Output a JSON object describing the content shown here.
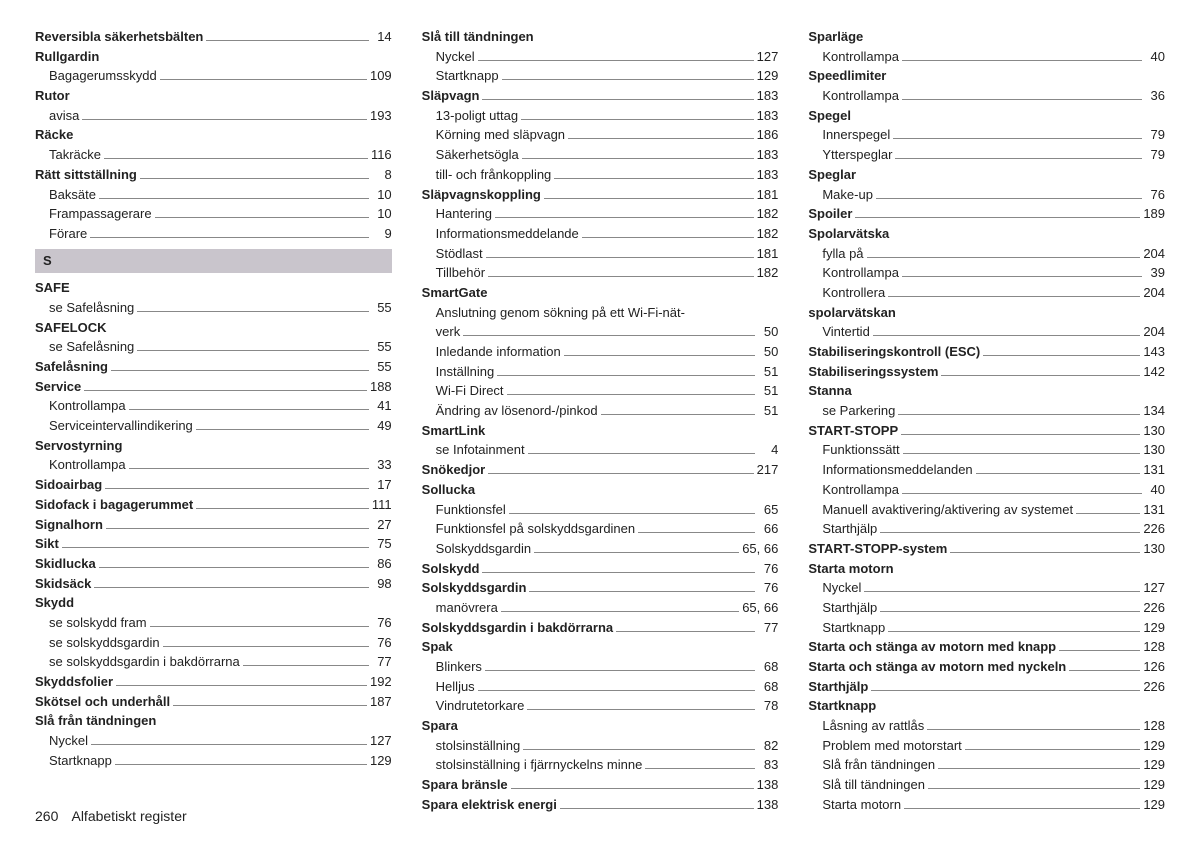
{
  "footer": {
    "page_number": "260",
    "title": "Alfabetiskt register"
  },
  "section_letter": "S",
  "columns": [
    [
      {
        "t": "entry",
        "bold": true,
        "label": "Reversibla säkerhetsbälten",
        "pg": "14"
      },
      {
        "t": "entry",
        "bold": true,
        "label": "Rullgardin",
        "nopage": true
      },
      {
        "t": "entry",
        "sub": true,
        "label": "Bagagerumsskydd",
        "pg": "109"
      },
      {
        "t": "entry",
        "bold": true,
        "label": "Rutor",
        "nopage": true
      },
      {
        "t": "entry",
        "sub": true,
        "label": "avisa",
        "pg": "193"
      },
      {
        "t": "entry",
        "bold": true,
        "label": "Räcke",
        "nopage": true
      },
      {
        "t": "entry",
        "sub": true,
        "label": "Takräcke",
        "pg": "116"
      },
      {
        "t": "entry",
        "bold": true,
        "label": "Rätt sittställning",
        "pg": "8"
      },
      {
        "t": "entry",
        "sub": true,
        "label": "Baksäte",
        "pg": "10"
      },
      {
        "t": "entry",
        "sub": true,
        "label": "Frampassagerare",
        "pg": "10"
      },
      {
        "t": "entry",
        "sub": true,
        "label": "Förare",
        "pg": "9"
      },
      {
        "t": "section",
        "label": "S"
      },
      {
        "t": "entry",
        "bold": true,
        "label": "SAFE",
        "nopage": true
      },
      {
        "t": "entry",
        "sub": true,
        "label": "se Safelåsning",
        "pg": "55"
      },
      {
        "t": "entry",
        "bold": true,
        "label": "SAFELOCK",
        "nopage": true
      },
      {
        "t": "entry",
        "sub": true,
        "label": "se Safelåsning",
        "pg": "55"
      },
      {
        "t": "entry",
        "bold": true,
        "label": "Safelåsning",
        "pg": "55"
      },
      {
        "t": "entry",
        "bold": true,
        "label": "Service",
        "pg": "188"
      },
      {
        "t": "entry",
        "sub": true,
        "label": "Kontrollampa",
        "pg": "41"
      },
      {
        "t": "entry",
        "sub": true,
        "label": "Serviceintervallindikering",
        "pg": "49"
      },
      {
        "t": "entry",
        "bold": true,
        "label": "Servostyrning",
        "nopage": true
      },
      {
        "t": "entry",
        "sub": true,
        "label": "Kontrollampa",
        "pg": "33"
      },
      {
        "t": "entry",
        "bold": true,
        "label": "Sidoairbag",
        "pg": "17"
      },
      {
        "t": "entry",
        "bold": true,
        "label": "Sidofack i bagagerummet",
        "pg": "111"
      },
      {
        "t": "entry",
        "bold": true,
        "label": "Signalhorn",
        "pg": "27"
      },
      {
        "t": "entry",
        "bold": true,
        "label": "Sikt",
        "pg": "75"
      },
      {
        "t": "entry",
        "bold": true,
        "label": "Skidlucka",
        "pg": "86"
      },
      {
        "t": "entry",
        "bold": true,
        "label": "Skidsäck",
        "pg": "98"
      },
      {
        "t": "entry",
        "bold": true,
        "label": "Skydd",
        "nopage": true
      },
      {
        "t": "entry",
        "sub": true,
        "label": "se solskydd fram",
        "pg": "76"
      },
      {
        "t": "entry",
        "sub": true,
        "label": "se solskyddsgardin",
        "pg": "76"
      },
      {
        "t": "entry",
        "sub": true,
        "label": "se solskyddsgardin i bakdörrarna",
        "pg": "77"
      },
      {
        "t": "entry",
        "bold": true,
        "label": "Skyddsfolier",
        "pg": "192"
      },
      {
        "t": "entry",
        "bold": true,
        "label": "Skötsel och underhåll",
        "pg": "187"
      },
      {
        "t": "entry",
        "bold": true,
        "label": "Slå från tändningen",
        "nopage": true
      },
      {
        "t": "entry",
        "sub": true,
        "label": "Nyckel",
        "pg": "127"
      },
      {
        "t": "entry",
        "sub": true,
        "label": "Startknapp",
        "pg": "129"
      }
    ],
    [
      {
        "t": "entry",
        "bold": true,
        "label": "Slå till tändningen",
        "nopage": true
      },
      {
        "t": "entry",
        "sub": true,
        "label": "Nyckel",
        "pg": "127"
      },
      {
        "t": "entry",
        "sub": true,
        "label": "Startknapp",
        "pg": "129"
      },
      {
        "t": "entry",
        "bold": true,
        "label": "Släpvagn",
        "pg": "183"
      },
      {
        "t": "entry",
        "sub": true,
        "label": "13-poligt uttag",
        "pg": "183"
      },
      {
        "t": "entry",
        "sub": true,
        "label": "Körning med släpvagn",
        "pg": "186"
      },
      {
        "t": "entry",
        "sub": true,
        "label": "Säkerhetsögla",
        "pg": "183"
      },
      {
        "t": "entry",
        "sub": true,
        "label": "till- och frånkoppling",
        "pg": "183"
      },
      {
        "t": "entry",
        "bold": true,
        "label": "Släpvagnskoppling",
        "pg": "181"
      },
      {
        "t": "entry",
        "sub": true,
        "label": "Hantering",
        "pg": "182"
      },
      {
        "t": "entry",
        "sub": true,
        "label": "Informationsmeddelande",
        "pg": "182"
      },
      {
        "t": "entry",
        "sub": true,
        "label": "Stödlast",
        "pg": "181"
      },
      {
        "t": "entry",
        "sub": true,
        "label": "Tillbehör",
        "pg": "182"
      },
      {
        "t": "entry",
        "bold": true,
        "label": "SmartGate",
        "nopage": true
      },
      {
        "t": "entry",
        "sub": true,
        "label": "Anslutning genom sökning på ett Wi-Fi-nät-",
        "nopage": true
      },
      {
        "t": "entry",
        "sub": true,
        "label": "verk",
        "pg": "50"
      },
      {
        "t": "entry",
        "sub": true,
        "label": "Inledande information",
        "pg": "50"
      },
      {
        "t": "entry",
        "sub": true,
        "label": "Inställning",
        "pg": "51"
      },
      {
        "t": "entry",
        "sub": true,
        "label": "Wi-Fi Direct",
        "pg": "51"
      },
      {
        "t": "entry",
        "sub": true,
        "label": "Ändring av lösenord-/pinkod",
        "pg": "51"
      },
      {
        "t": "entry",
        "bold": true,
        "label": "SmartLink",
        "nopage": true
      },
      {
        "t": "entry",
        "sub": true,
        "label": "se Infotainment",
        "pg": "4"
      },
      {
        "t": "entry",
        "bold": true,
        "label": "Snökedjor",
        "pg": "217"
      },
      {
        "t": "entry",
        "bold": true,
        "label": "Sollucka",
        "nopage": true
      },
      {
        "t": "entry",
        "sub": true,
        "label": "Funktionsfel",
        "pg": "65"
      },
      {
        "t": "entry",
        "sub": true,
        "label": "Funktionsfel på solskyddsgardinen",
        "pg": "66"
      },
      {
        "t": "entry",
        "sub": true,
        "label": "Solskyddsgardin",
        "pg": "65, 66"
      },
      {
        "t": "entry",
        "bold": true,
        "label": "Solskydd",
        "pg": "76"
      },
      {
        "t": "entry",
        "bold": true,
        "label": "Solskyddsgardin",
        "pg": "76"
      },
      {
        "t": "entry",
        "sub": true,
        "label": "manövrera",
        "pg": "65, 66"
      },
      {
        "t": "entry",
        "bold": true,
        "label": "Solskyddsgardin i bakdörrarna",
        "pg": "77"
      },
      {
        "t": "entry",
        "bold": true,
        "label": "Spak",
        "nopage": true
      },
      {
        "t": "entry",
        "sub": true,
        "label": "Blinkers",
        "pg": "68"
      },
      {
        "t": "entry",
        "sub": true,
        "label": "Helljus",
        "pg": "68"
      },
      {
        "t": "entry",
        "sub": true,
        "label": "Vindrutetorkare",
        "pg": "78"
      },
      {
        "t": "entry",
        "bold": true,
        "label": "Spara",
        "nopage": true
      },
      {
        "t": "entry",
        "sub": true,
        "label": "stolsinställning",
        "pg": "82"
      },
      {
        "t": "entry",
        "sub": true,
        "label": "stolsinställning i fjärrnyckelns minne",
        "pg": "83"
      },
      {
        "t": "entry",
        "bold": true,
        "label": "Spara bränsle",
        "pg": "138"
      },
      {
        "t": "entry",
        "bold": true,
        "label": "Spara elektrisk energi",
        "pg": "138"
      }
    ],
    [
      {
        "t": "entry",
        "bold": true,
        "label": "Sparläge",
        "nopage": true
      },
      {
        "t": "entry",
        "sub": true,
        "label": "Kontrollampa",
        "pg": "40"
      },
      {
        "t": "entry",
        "bold": true,
        "label": "Speedlimiter",
        "nopage": true
      },
      {
        "t": "entry",
        "sub": true,
        "label": "Kontrollampa",
        "pg": "36"
      },
      {
        "t": "entry",
        "bold": true,
        "label": "Spegel",
        "nopage": true
      },
      {
        "t": "entry",
        "sub": true,
        "label": "Innerspegel",
        "pg": "79"
      },
      {
        "t": "entry",
        "sub": true,
        "label": "Ytterspeglar",
        "pg": "79"
      },
      {
        "t": "entry",
        "bold": true,
        "label": "Speglar",
        "nopage": true
      },
      {
        "t": "entry",
        "sub": true,
        "label": "Make-up",
        "pg": "76"
      },
      {
        "t": "entry",
        "bold": true,
        "label": "Spoiler",
        "pg": "189"
      },
      {
        "t": "entry",
        "bold": true,
        "label": "Spolarvätska",
        "nopage": true
      },
      {
        "t": "entry",
        "sub": true,
        "label": "fylla på",
        "pg": "204"
      },
      {
        "t": "entry",
        "sub": true,
        "label": "Kontrollampa",
        "pg": "39"
      },
      {
        "t": "entry",
        "sub": true,
        "label": "Kontrollera",
        "pg": "204"
      },
      {
        "t": "entry",
        "bold": true,
        "label": "spolarvätskan",
        "nopage": true
      },
      {
        "t": "entry",
        "sub": true,
        "label": "Vintertid",
        "pg": "204"
      },
      {
        "t": "entry",
        "bold": true,
        "label": "Stabiliseringskontroll (ESC)",
        "pg": "143"
      },
      {
        "t": "entry",
        "bold": true,
        "label": "Stabiliseringssystem",
        "pg": "142"
      },
      {
        "t": "entry",
        "bold": true,
        "label": "Stanna",
        "nopage": true
      },
      {
        "t": "entry",
        "sub": true,
        "label": "se Parkering",
        "pg": "134"
      },
      {
        "t": "entry",
        "bold": true,
        "label": "START-STOPP",
        "pg": "130"
      },
      {
        "t": "entry",
        "sub": true,
        "label": "Funktionssätt",
        "pg": "130"
      },
      {
        "t": "entry",
        "sub": true,
        "label": "Informationsmeddelanden",
        "pg": "131"
      },
      {
        "t": "entry",
        "sub": true,
        "label": "Kontrollampa",
        "pg": "40"
      },
      {
        "t": "entry",
        "sub": true,
        "label": "Manuell avaktivering/aktivering av systemet",
        "pg": "131"
      },
      {
        "t": "entry",
        "sub": true,
        "label": "Starthjälp",
        "pg": "226"
      },
      {
        "t": "entry",
        "bold": true,
        "label": "START-STOPP-system",
        "pg": "130"
      },
      {
        "t": "entry",
        "bold": true,
        "label": "Starta motorn",
        "nopage": true
      },
      {
        "t": "entry",
        "sub": true,
        "label": "Nyckel",
        "pg": "127"
      },
      {
        "t": "entry",
        "sub": true,
        "label": "Starthjälp",
        "pg": "226"
      },
      {
        "t": "entry",
        "sub": true,
        "label": "Startknapp",
        "pg": "129"
      },
      {
        "t": "entry",
        "bold": true,
        "label": "Starta och stänga av motorn med knapp",
        "pg": "128"
      },
      {
        "t": "entry",
        "bold": true,
        "label": "Starta och stänga av motorn med nyckeln",
        "pg": "126"
      },
      {
        "t": "entry",
        "bold": true,
        "label": "Starthjälp",
        "pg": "226"
      },
      {
        "t": "entry",
        "bold": true,
        "label": "Startknapp",
        "nopage": true
      },
      {
        "t": "entry",
        "sub": true,
        "label": "Låsning av rattlås",
        "pg": "128"
      },
      {
        "t": "entry",
        "sub": true,
        "label": "Problem med motorstart",
        "pg": "129"
      },
      {
        "t": "entry",
        "sub": true,
        "label": "Slå från tändningen",
        "pg": "129"
      },
      {
        "t": "entry",
        "sub": true,
        "label": "Slå till tändningen",
        "pg": "129"
      },
      {
        "t": "entry",
        "sub": true,
        "label": "Starta motorn",
        "pg": "129"
      }
    ]
  ]
}
